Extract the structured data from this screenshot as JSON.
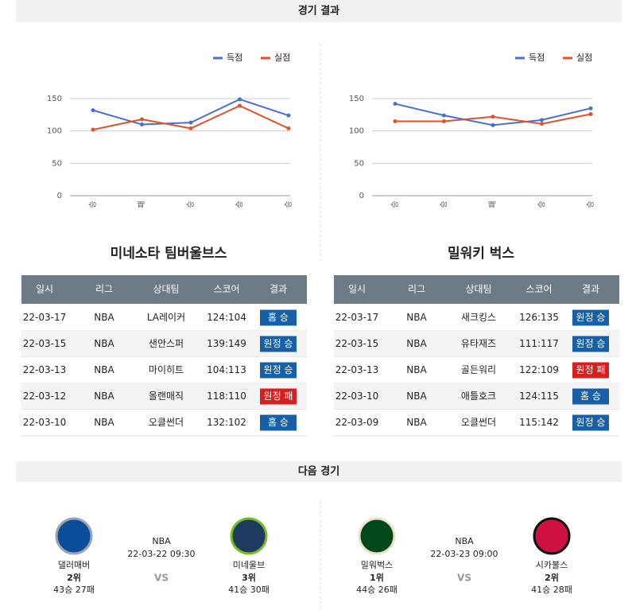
{
  "header": "경기 결과",
  "chart_data": [
    {
      "type": "line",
      "categories": [
        "승",
        "패",
        "승",
        "승",
        "승"
      ],
      "ylim": [
        0,
        150
      ],
      "yticks": [
        0,
        50,
        100,
        150
      ],
      "grid": true,
      "series": [
        {
          "name": "득점",
          "color": "#4a6fd1",
          "values": [
            132,
            110,
            113,
            149,
            124
          ]
        },
        {
          "name": "실점",
          "color": "#e0522b",
          "values": [
            102,
            118,
            104,
            139,
            104
          ]
        }
      ]
    },
    {
      "type": "line",
      "categories": [
        "승",
        "승",
        "패",
        "승",
        "승"
      ],
      "ylim": [
        0,
        150
      ],
      "yticks": [
        0,
        50,
        100,
        150
      ],
      "grid": true,
      "series": [
        {
          "name": "득점",
          "color": "#4a6fd1",
          "values": [
            142,
            124,
            109,
            117,
            135
          ]
        },
        {
          "name": "실점",
          "color": "#e0522b",
          "values": [
            115,
            115,
            122,
            111,
            126
          ]
        }
      ]
    }
  ],
  "teams": [
    "미네소타 팀버울브스",
    "밀워키 벅스"
  ],
  "tables": {
    "columns": [
      "일시",
      "리그",
      "상대팀",
      "스코어",
      "결과"
    ],
    "rows": [
      [
        [
          "22-03-17",
          "NBA",
          "LA레이커",
          "124:104",
          "홈 승"
        ],
        [
          "22-03-15",
          "NBA",
          "샌안스퍼",
          "139:149",
          "원정 승"
        ],
        [
          "22-03-13",
          "NBA",
          "마이히트",
          "104:113",
          "원정 승"
        ],
        [
          "22-03-12",
          "NBA",
          "올랜매직",
          "118:110",
          "원정 패"
        ],
        [
          "22-03-10",
          "NBA",
          "오클썬더",
          "132:102",
          "홈 승"
        ]
      ],
      [
        [
          "22-03-17",
          "NBA",
          "새크킹스",
          "126:135",
          "원정 승"
        ],
        [
          "22-03-15",
          "NBA",
          "유타재즈",
          "111:117",
          "원정 승"
        ],
        [
          "22-03-13",
          "NBA",
          "골든워리",
          "122:109",
          "원정 패"
        ],
        [
          "22-03-10",
          "NBA",
          "애틀호크",
          "124:115",
          "홈 승"
        ],
        [
          "22-03-09",
          "NBA",
          "오클썬더",
          "115:142",
          "원정 승"
        ]
      ]
    ]
  },
  "next_header": "다음 경기",
  "games": [
    {
      "league": "NBA",
      "datetime": "22-03-22 09:30",
      "vs": "VS",
      "home": {
        "name": "댈러매버",
        "rank": "2위",
        "record": "43승 27패"
      },
      "away": {
        "name": "미네울브",
        "rank": "3위",
        "record": "41승 30패"
      }
    },
    {
      "league": "NBA",
      "datetime": "22-03-23 09:00",
      "vs": "VS",
      "home": {
        "name": "밀워벅스",
        "rank": "1위",
        "record": "44승 26패"
      },
      "away": {
        "name": "시카불스",
        "rank": "2위",
        "record": "41승 28패"
      }
    }
  ]
}
